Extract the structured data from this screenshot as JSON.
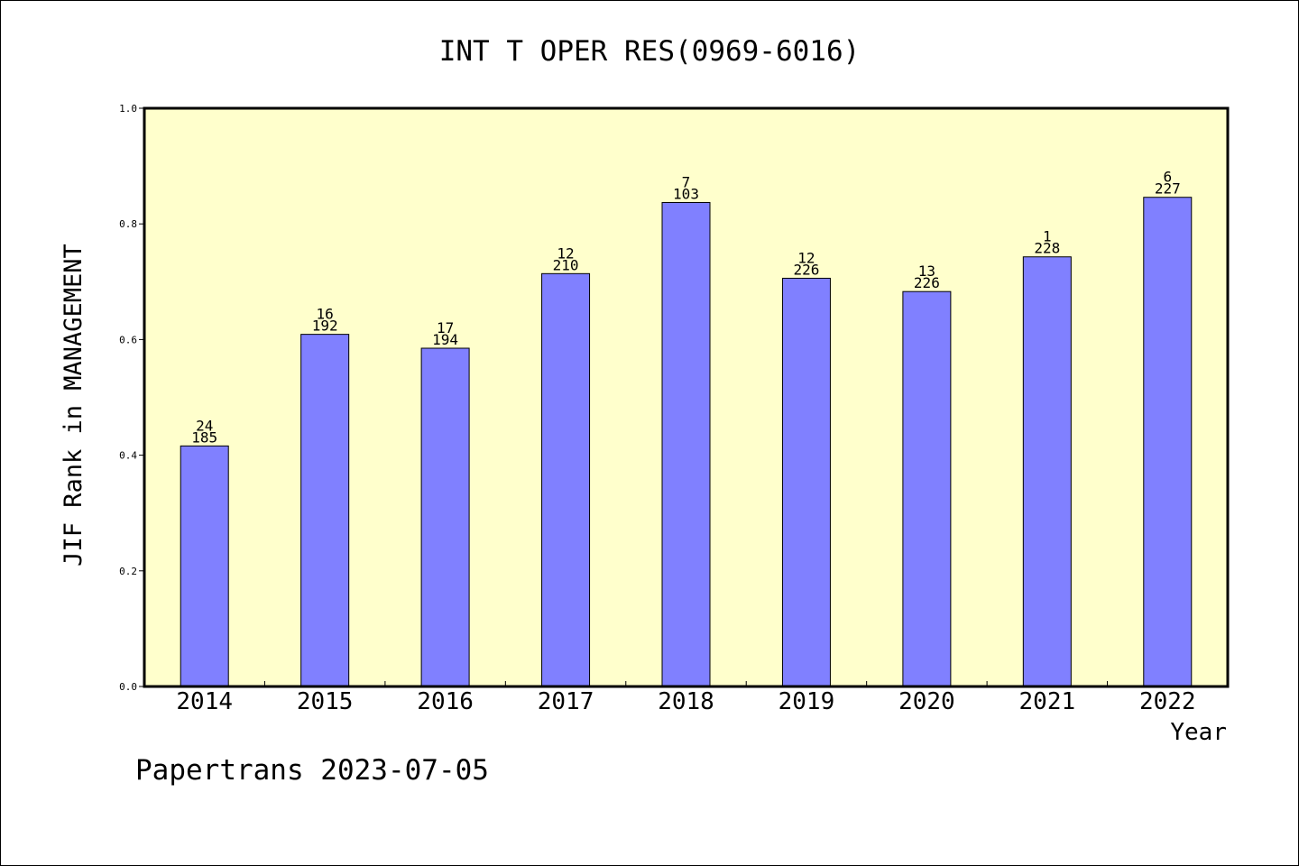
{
  "chart_data": {
    "type": "bar",
    "title": "INT T OPER RES(0969-6016)",
    "xlabel": "Year",
    "ylabel": "JIF Rank in MANAGEMENT",
    "ylim": [
      0.0,
      1.0
    ],
    "yticks": [
      "0.0",
      "0.2",
      "0.4",
      "0.6",
      "0.8",
      "1.0"
    ],
    "categories": [
      "2014",
      "2015",
      "2016",
      "2017",
      "2018",
      "2019",
      "2020",
      "2021",
      "2022"
    ],
    "values": [
      0.416,
      0.609,
      0.585,
      0.714,
      0.837,
      0.706,
      0.683,
      0.743,
      0.846
    ],
    "labels_top": [
      "24",
      "16",
      "17",
      "12",
      "7",
      "12",
      "13",
      "1",
      "6"
    ],
    "labels_bottom": [
      "185",
      "192",
      "194",
      "210",
      "103",
      "226",
      "226",
      "228",
      "227"
    ],
    "grid": false,
    "colors": {
      "plot_background": "#ffffcc",
      "bar_fill": "#8080ff",
      "bar_stroke": "#000000"
    }
  },
  "footer": "Papertrans 2023-07-05"
}
